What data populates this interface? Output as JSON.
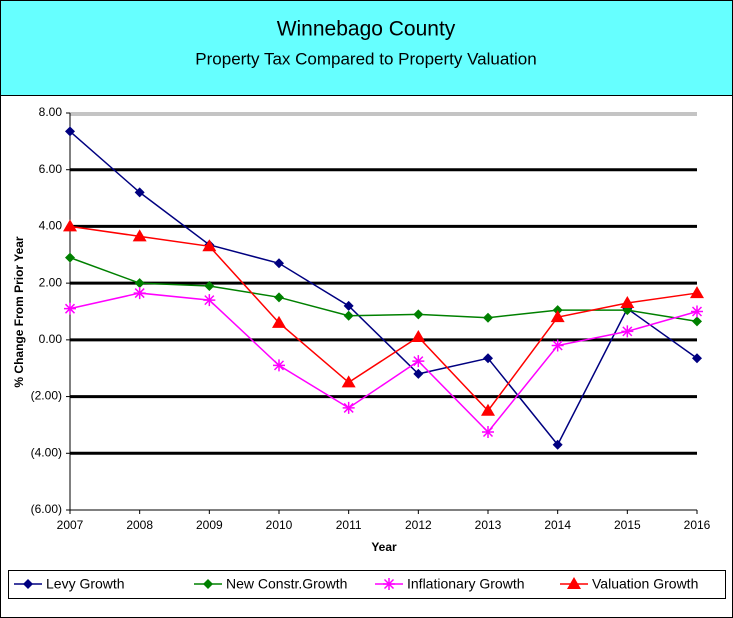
{
  "chart_data": {
    "type": "line",
    "title": "Winnebago County",
    "subtitle": "Property Tax Compared to Property Valuation",
    "x_label": "Year",
    "y_label": "% Change From Prior Year",
    "x": [
      2007,
      2008,
      2009,
      2010,
      2011,
      2012,
      2013,
      2014,
      2015,
      2016
    ],
    "xlim": [
      2007,
      2016
    ],
    "xticks": [
      2007,
      2008,
      2009,
      2010,
      2011,
      2012,
      2013,
      2014,
      2015,
      2016
    ],
    "ylim": [
      -6,
      8
    ],
    "yticks": [
      {
        "value": 8,
        "label": "8.00"
      },
      {
        "value": 6,
        "label": "6.00"
      },
      {
        "value": 4,
        "label": "4.00"
      },
      {
        "value": 2,
        "label": "2.00"
      },
      {
        "value": 0,
        "label": "0.00"
      },
      {
        "value": -2,
        "label": "(2.00)"
      },
      {
        "value": -4,
        "label": "(4.00)"
      },
      {
        "value": -6,
        "label": "(6.00)"
      }
    ],
    "grid": true,
    "legend": "bottom",
    "series": [
      {
        "name": "Levy Growth",
        "color": "#000080",
        "marker": "diamond",
        "values": [
          7.35,
          5.2,
          3.35,
          2.7,
          1.2,
          -1.2,
          -0.65,
          -3.7,
          1.1,
          -0.65
        ]
      },
      {
        "name": "New Constr.Growth",
        "color": "#008000",
        "marker": "diamond",
        "values": [
          2.9,
          2.0,
          1.9,
          1.5,
          0.85,
          0.9,
          0.78,
          1.05,
          1.05,
          0.65
        ]
      },
      {
        "name": "Inflationary Growth",
        "color": "#FF00FF",
        "marker": "asterisk",
        "values": [
          1.1,
          1.65,
          1.4,
          -0.9,
          -2.4,
          -0.75,
          -3.25,
          -0.2,
          0.3,
          1.0
        ]
      },
      {
        "name": "Valuation Growth",
        "color": "#FF0000",
        "marker": "triangle",
        "values": [
          4.0,
          3.65,
          3.3,
          0.6,
          -1.5,
          0.1,
          -2.5,
          0.8,
          1.3,
          1.65
        ]
      }
    ]
  }
}
